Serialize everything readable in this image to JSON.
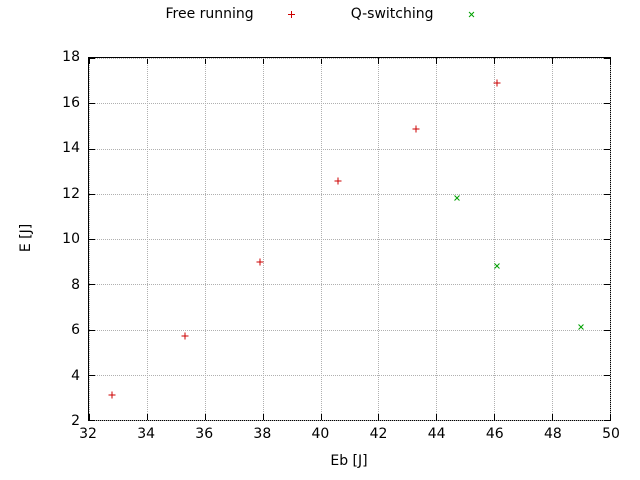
{
  "chart_data": {
    "type": "scatter",
    "title": "",
    "xlabel": "Eb [J]",
    "ylabel": "E [J]",
    "xlim": [
      32,
      50
    ],
    "ylim": [
      2,
      18
    ],
    "xticks": [
      32,
      34,
      36,
      38,
      40,
      42,
      44,
      46,
      48,
      50
    ],
    "yticks": [
      2,
      4,
      6,
      8,
      10,
      12,
      14,
      16,
      18
    ],
    "grid": true,
    "legend_position": "top-center",
    "series": [
      {
        "name": "Free running",
        "marker": "plus",
        "color": "#cc0000",
        "points": [
          [
            32.8,
            3.1
          ],
          [
            35.3,
            5.7
          ],
          [
            37.9,
            9.0
          ],
          [
            40.6,
            12.55
          ],
          [
            43.3,
            14.85
          ],
          [
            46.1,
            16.9
          ]
        ]
      },
      {
        "name": "Q-switching",
        "marker": "cross",
        "color": "#00a000",
        "points": [
          [
            44.7,
            11.8
          ],
          [
            46.1,
            8.8
          ],
          [
            49.0,
            6.1
          ]
        ]
      }
    ]
  },
  "colors": {
    "grid": "#b0b0b0",
    "border": "#000000",
    "text": "#000000",
    "background": "#ffffff"
  }
}
